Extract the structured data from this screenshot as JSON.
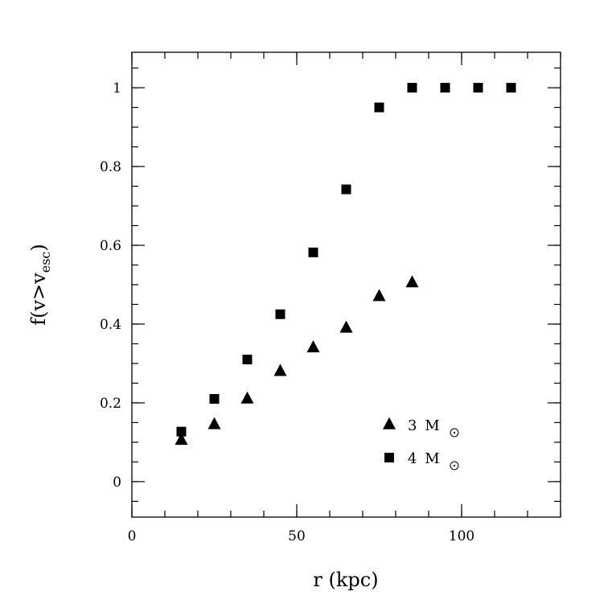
{
  "chart_data": {
    "type": "scatter",
    "xlabel": "r (kpc)",
    "ylabel": "f(v>v_esc)",
    "ylabel_parts": {
      "main": "f(v>v",
      "sub": "esc",
      "close": ")"
    },
    "xlim": [
      0,
      130
    ],
    "ylim": [
      -0.09,
      1.09
    ],
    "x_major_ticks": [
      0,
      50,
      100
    ],
    "x_tick_labels": [
      "0",
      "50",
      "100"
    ],
    "x_minor_step": 10,
    "y_major_ticks": [
      0,
      0.2,
      0.4,
      0.6,
      0.8,
      1
    ],
    "y_tick_labels": [
      "0",
      "0.2",
      "0.4",
      "0.6",
      "0.8",
      "1"
    ],
    "y_minor_step": 0.05,
    "grid": false,
    "legend_position": "lower-right",
    "series": [
      {
        "name": "3 M_sun",
        "label_number": "3",
        "label_unit": "M",
        "marker": "triangle",
        "x": [
          15,
          25,
          35,
          45,
          55,
          65,
          75,
          85
        ],
        "y": [
          0.105,
          0.145,
          0.21,
          0.28,
          0.34,
          0.39,
          0.47,
          0.505
        ]
      },
      {
        "name": "4 M_sun",
        "label_number": "4",
        "label_unit": "M",
        "marker": "square",
        "x": [
          15,
          25,
          35,
          45,
          55,
          65,
          75,
          85,
          95,
          105,
          115
        ],
        "y": [
          0.127,
          0.21,
          0.31,
          0.425,
          0.582,
          0.742,
          0.95,
          1.0,
          1.0,
          1.0,
          1.0
        ]
      }
    ]
  }
}
